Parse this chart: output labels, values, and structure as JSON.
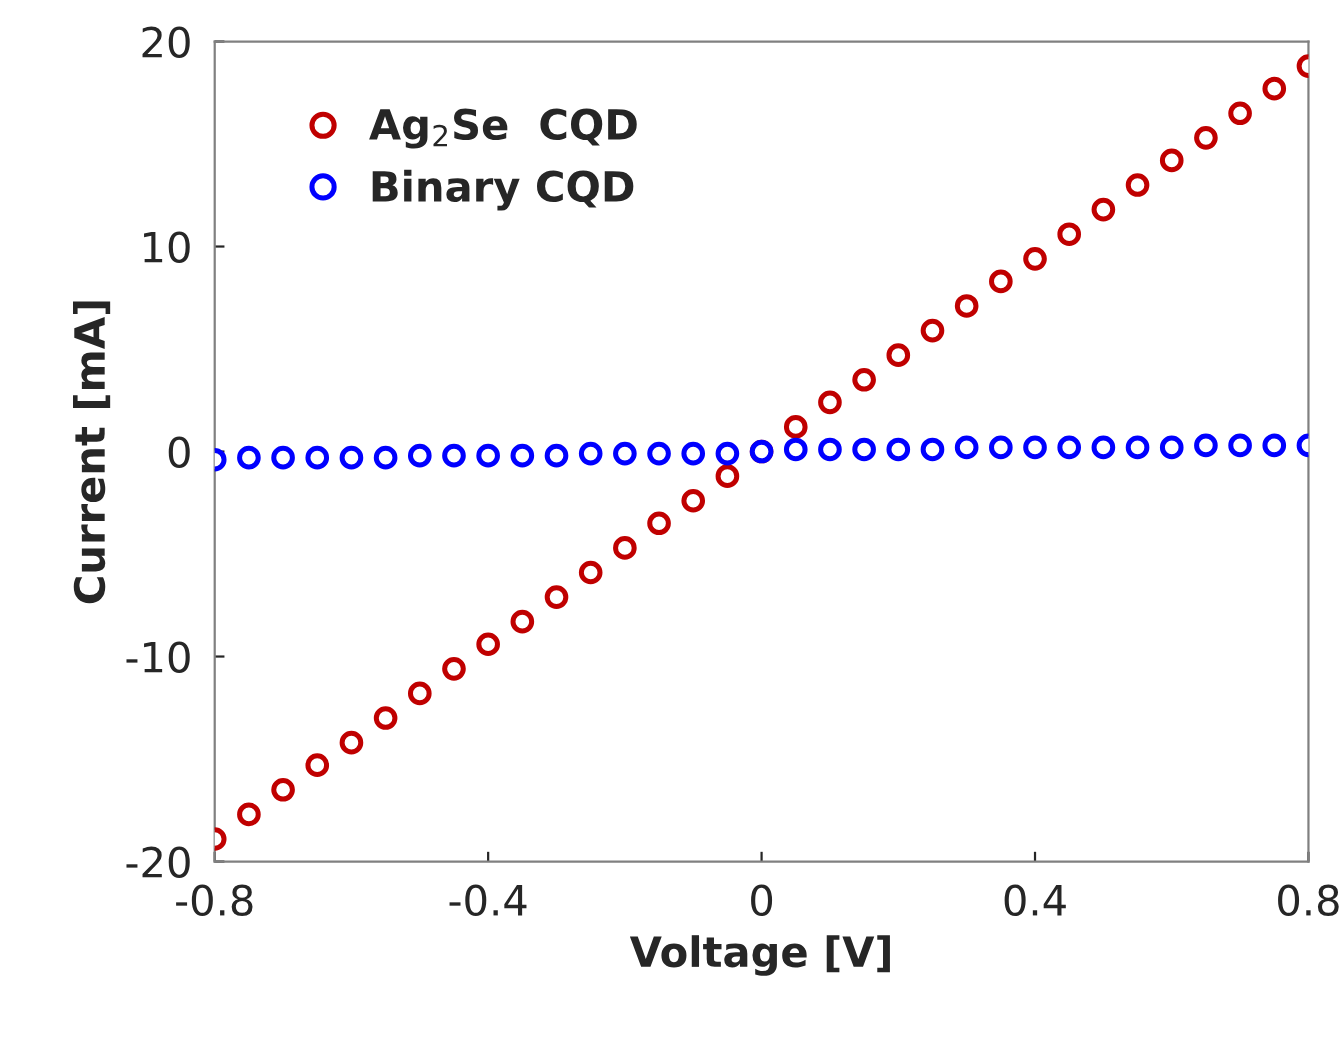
{
  "chart_data": {
    "type": "scatter",
    "xlabel": "Voltage [V]",
    "ylabel": "Current [mA]",
    "x": [
      -0.8,
      -0.75,
      -0.7,
      -0.65,
      -0.6,
      -0.55,
      -0.5,
      -0.45,
      -0.4,
      -0.35,
      -0.3,
      -0.25,
      -0.2,
      -0.15,
      -0.1,
      -0.05,
      0,
      0.05,
      0.1,
      0.15,
      0.2,
      0.25,
      0.3,
      0.35,
      0.4,
      0.45,
      0.5,
      0.55,
      0.6,
      0.65,
      0.7,
      0.75,
      0.8
    ],
    "series": [
      {
        "name": "Ag$_{2}$Se  CQD",
        "color": "#c00000",
        "values": [
          -18.9,
          -17.7,
          -16.5,
          -15.3,
          -14.2,
          -13.0,
          -11.8,
          -10.6,
          -9.4,
          -8.3,
          -7.1,
          -5.9,
          -4.7,
          -3.5,
          -2.4,
          -1.2,
          0.0,
          1.2,
          2.4,
          3.5,
          4.7,
          5.9,
          7.1,
          8.3,
          9.4,
          10.6,
          11.8,
          13.0,
          14.2,
          15.3,
          16.5,
          17.7,
          18.8
        ]
      },
      {
        "name": "Binary CQD",
        "color": "#0000ff",
        "values": [
          -0.4,
          -0.3,
          -0.3,
          -0.3,
          -0.3,
          -0.3,
          -0.2,
          -0.2,
          -0.2,
          -0.2,
          -0.2,
          -0.1,
          -0.1,
          -0.1,
          -0.1,
          -0.1,
          0,
          0.1,
          0.1,
          0.1,
          0.1,
          0.1,
          0.2,
          0.2,
          0.2,
          0.2,
          0.2,
          0.2,
          0.2,
          0.3,
          0.3,
          0.3,
          0.3
        ]
      }
    ],
    "xlim": [
      -0.8,
      0.8
    ],
    "xticks": [
      {
        "value": -0.8,
        "label": "-0.8"
      },
      {
        "value": -0.4,
        "label": "-0.4"
      },
      0,
      0.4,
      0.8
    ],
    "ylim": [
      -20,
      20
    ],
    "yticks": [
      {
        "value": -20,
        "label": "-20"
      },
      {
        "value": -10,
        "label": "-10"
      },
      0,
      10,
      20
    ],
    "marker": "circle",
    "legend": "top left",
    "grid": false
  }
}
